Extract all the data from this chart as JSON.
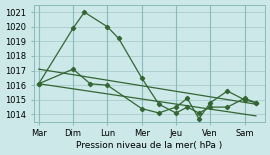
{
  "background_color": "#cce8e8",
  "grid_color": "#aacccc",
  "line_color": "#336633",
  "x_labels": [
    "Mar",
    "Dim",
    "Lun",
    "Mer",
    "Jeu",
    "Ven",
    "Sam"
  ],
  "xlabel": "Pression niveau de la mer( hPa )",
  "ylim": [
    1013.5,
    1021.5
  ],
  "yticks": [
    1014,
    1015,
    1016,
    1017,
    1018,
    1019,
    1020,
    1021
  ],
  "series_top": {
    "x": [
      0,
      1.0,
      1.33,
      2.0,
      2.33,
      3.0,
      3.5,
      4.0,
      4.33,
      4.67,
      5.0,
      5.5,
      6.0,
      6.33
    ],
    "y": [
      1016.1,
      1019.9,
      1021.0,
      1020.0,
      1019.2,
      1016.5,
      1014.7,
      1014.1,
      1014.5,
      1014.1,
      1014.5,
      1014.5,
      1015.1,
      1014.8
    ]
  },
  "series_bot": {
    "x": [
      0,
      1.0,
      1.5,
      2.0,
      3.0,
      3.5,
      4.0,
      4.33,
      4.67,
      5.0,
      5.5,
      6.0,
      6.33
    ],
    "y": [
      1016.1,
      1017.1,
      1016.1,
      1016.0,
      1014.4,
      1014.1,
      1014.5,
      1015.1,
      1013.7,
      1014.8,
      1015.6,
      1015.0,
      1014.8
    ]
  },
  "trend1": {
    "x": [
      0,
      6.33
    ],
    "y": [
      1017.1,
      1014.7
    ]
  },
  "trend2": {
    "x": [
      0,
      6.33
    ],
    "y": [
      1016.1,
      1013.9
    ]
  },
  "x_day_pos": [
    0,
    1.0,
    2.0,
    3.0,
    4.0,
    5.0,
    6.0
  ],
  "xlim": [
    -0.15,
    6.6
  ]
}
